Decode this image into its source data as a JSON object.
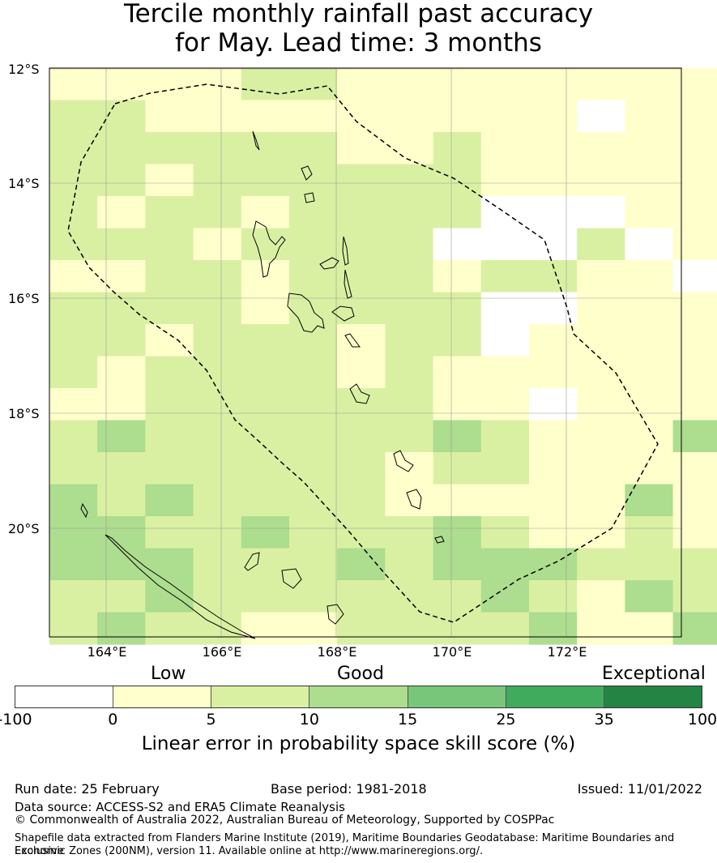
{
  "title": {
    "line1": "Tercile monthly rainfall past accuracy",
    "line2": "for May. Lead time: 3 months"
  },
  "map": {
    "lat_labels": [
      "12°S",
      "14°S",
      "16°S",
      "18°S",
      "20°S"
    ],
    "lon_labels": [
      "164°E",
      "166°E",
      "168°E",
      "170°E",
      "172°E"
    ],
    "region_outline": "dashed EEZ boundary",
    "colors": {
      "lt0": "#ffffff",
      "c0_5": "#ffffcc",
      "c5_10": "#d9f0a3",
      "c10_15": "#addd8e",
      "c15_25": "#78c679",
      "c25_35": "#41ab5d",
      "c35_100": "#238443"
    }
  },
  "legend": {
    "categories": [
      "Low",
      "Good",
      "Exceptional"
    ],
    "ticks": [
      "-100",
      "0",
      "5",
      "10",
      "15",
      "25",
      "35",
      "100"
    ],
    "colors": [
      "#ffffff",
      "#ffffcc",
      "#d9f0a3",
      "#addd8e",
      "#78c679",
      "#41ab5d",
      "#238443"
    ],
    "label": "Linear error in probability space skill score (%)"
  },
  "footer": {
    "run_date": "Run date: 25 February",
    "base_period": "Base period: 1981-2018",
    "issued": "Issued: 11/01/2022",
    "data_source": "Data source: ACCESS-S2 and ERA5 Climate Reanalysis",
    "copyright": "© Commonwealth of Australia 2022, Australian Bureau of Meteorology, Supported by COSPPac",
    "shapefile_line1": "Shapefile data extracted from Flanders Marine Institute (2019), Maritime Boundaries Geodatabase: Maritime Boundaries and Exclusive",
    "shapefile_line2": "Economic Zones (200NM), version 11. Available online at http://www.marineregions.org/."
  }
}
